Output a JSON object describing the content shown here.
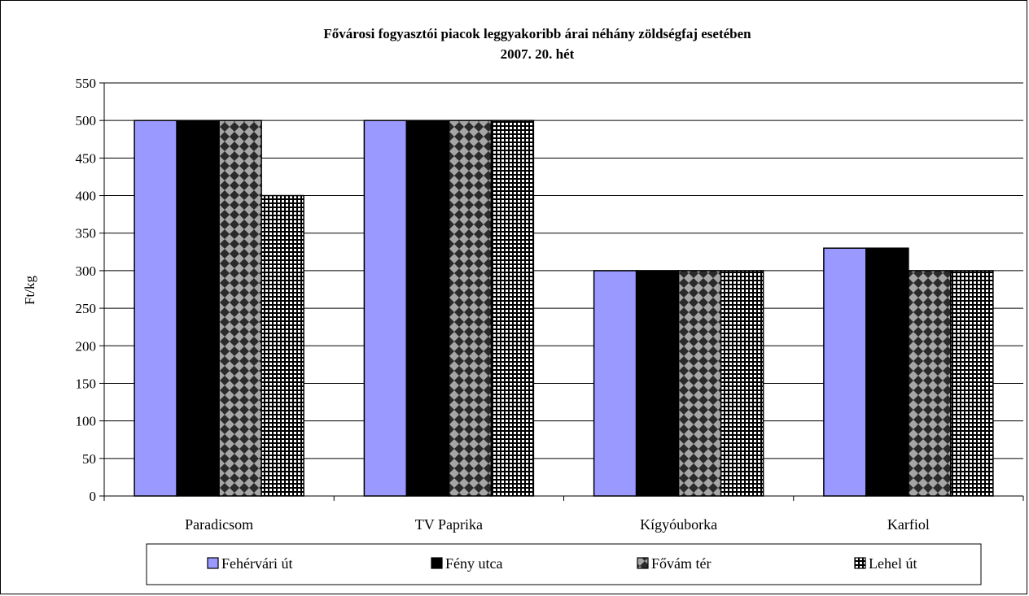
{
  "chart_data": {
    "type": "bar",
    "title": "Fővárosi fogyasztói piacok leggyakoribb árai néhány zöldségfaj esetében",
    "subtitle": "2007. 20. hét",
    "ylabel": "Ft/kg",
    "xlabel": "",
    "ylim": [
      0,
      550
    ],
    "ytick_step": 50,
    "grid": true,
    "legend_position": "bottom",
    "categories": [
      "Paradicsom",
      "TV Paprika",
      "Kígyóuborka",
      "Karfiol"
    ],
    "series": [
      {
        "name": "Fehérvári út",
        "values": [
          500,
          500,
          300,
          330
        ],
        "color": "#9999ff",
        "pattern": "solid"
      },
      {
        "name": "Fény utca",
        "values": [
          500,
          500,
          300,
          330
        ],
        "color": "#000000",
        "pattern": "solid"
      },
      {
        "name": "Fővám tér",
        "values": [
          500,
          500,
          300,
          300
        ],
        "color": "#333333",
        "pattern": "diamond"
      },
      {
        "name": "Lehel út",
        "values": [
          400,
          500,
          300,
          300
        ],
        "color": "#000000",
        "pattern": "grid"
      }
    ]
  }
}
